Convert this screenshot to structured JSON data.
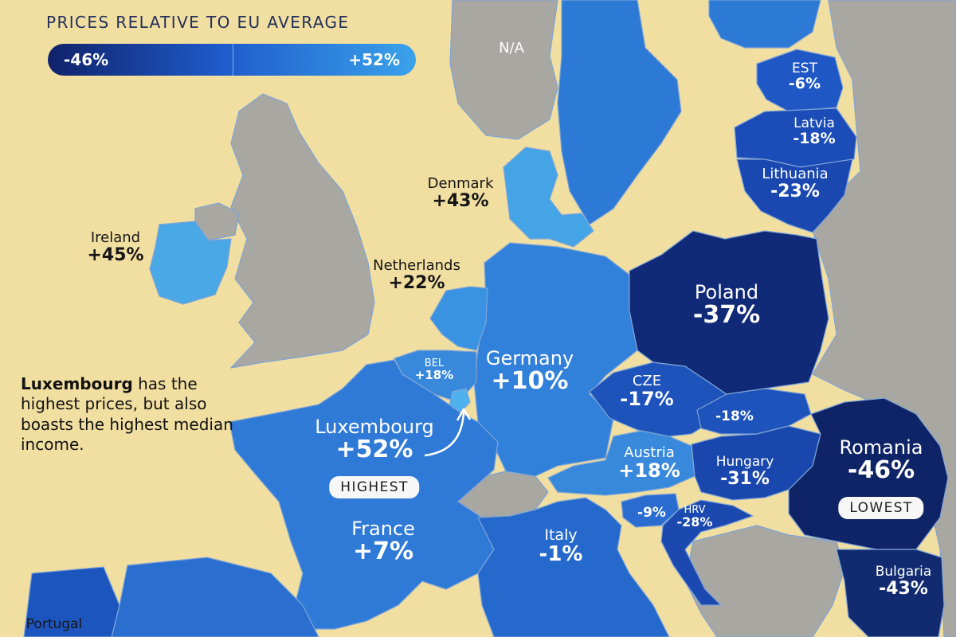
{
  "legend": {
    "title": "PRICES RELATIVE TO EU AVERAGE",
    "min_label": "-46%",
    "max_label": "+52%",
    "color_low": "#10226a",
    "color_high": "#3aa2ea"
  },
  "na_label": "N/A",
  "colors": {
    "sea": "#f1dea1",
    "no_data": "#a9a7a2",
    "border": "#7fa4d6"
  },
  "countries": {
    "ireland": {
      "name": "Ireland",
      "value": "+45%"
    },
    "denmark": {
      "name": "Denmark",
      "value": "+43%"
    },
    "netherlands": {
      "name": "Netherlands",
      "value": "+22%"
    },
    "belgium": {
      "name": "BEL",
      "value": "+18%"
    },
    "germany": {
      "name": "Germany",
      "value": "+10%"
    },
    "luxembourg": {
      "name": "Luxembourg",
      "value": "+52%",
      "badge": "HIGHEST"
    },
    "france": {
      "name": "France",
      "value": "+7%"
    },
    "italy": {
      "name": "Italy",
      "value": "-1%"
    },
    "austria": {
      "name": "Austria",
      "value": "+18%"
    },
    "czechia": {
      "name": "CZE",
      "value": "-17%"
    },
    "slovakia": {
      "value": "-18%"
    },
    "hungary": {
      "name": "Hungary",
      "value": "-31%"
    },
    "slovenia": {
      "value": "-9%"
    },
    "croatia": {
      "name": "HRV",
      "value": "-28%"
    },
    "poland": {
      "name": "Poland",
      "value": "-37%"
    },
    "romania": {
      "name": "Romania",
      "value": "-46%",
      "badge": "LOWEST"
    },
    "bulgaria": {
      "name": "Bulgaria",
      "value": "-43%"
    },
    "estonia": {
      "name": "EST",
      "value": "-6%"
    },
    "latvia": {
      "name": "Latvia",
      "value": "-18%"
    },
    "lithuania": {
      "name": "Lithuania",
      "value": "-23%"
    },
    "portugal": {
      "name": "Portugal"
    }
  },
  "note": {
    "bold": "Luxembourg",
    "text": " has the highest prices, but also boasts the highest median income."
  }
}
